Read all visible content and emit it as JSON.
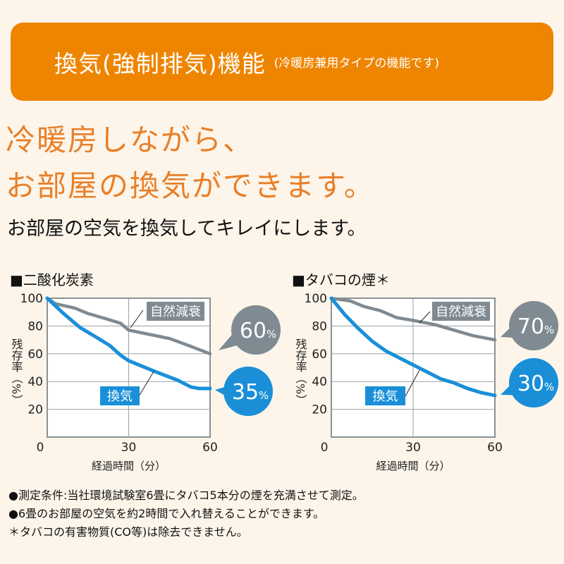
{
  "banner": {
    "title": "換気(強制排気)機能",
    "subtitle": "(冷暖房兼用タイプの機能です)"
  },
  "headline": {
    "line1": "冷暖房しながら、",
    "line2": "お部屋の換気ができます。"
  },
  "subheadline": "お部屋の空気を換気してキレイにします。",
  "colors": {
    "orange": "#ee8500",
    "headline": "#e8802a",
    "blue": "#1a8fd8",
    "gray": "#7f8a92",
    "background": "#fdf5ea"
  },
  "chart_data": [
    {
      "type": "line",
      "title": "■二酸化炭素",
      "xlabel": "経過時間（分）",
      "ylabel": "残存率（%）",
      "xlim": [
        0,
        60
      ],
      "ylim": [
        0,
        100
      ],
      "xticks": [
        "0",
        "30",
        "60"
      ],
      "yticks": [
        "100",
        "80",
        "60",
        "40",
        "20"
      ],
      "grid": true,
      "series": [
        {
          "name": "自然減衰",
          "color": "#7f8a92",
          "end_label": "60",
          "unit": "%",
          "x": [
            0,
            3,
            10,
            15,
            22,
            27,
            30,
            35,
            45,
            52,
            60
          ],
          "y": [
            100,
            96,
            93,
            89,
            85,
            82,
            77,
            75,
            71,
            66,
            60
          ]
        },
        {
          "name": "換気",
          "color": "#1a8fd8",
          "end_label": "35",
          "unit": "%",
          "x": [
            0,
            6,
            12,
            18,
            23,
            27,
            30,
            35,
            40,
            48,
            53,
            56,
            60
          ],
          "y": [
            100,
            89,
            79,
            72,
            66,
            59,
            55,
            51,
            47,
            41,
            36,
            35,
            35
          ]
        }
      ]
    },
    {
      "type": "line",
      "title": "■タバコの煙＊",
      "xlabel": "経過時間（分）",
      "ylabel": "残存率（%）",
      "xlim": [
        0,
        60
      ],
      "ylim": [
        0,
        100
      ],
      "xticks": [
        "0",
        "30",
        "60"
      ],
      "yticks": [
        "100",
        "80",
        "60",
        "40",
        "20"
      ],
      "grid": true,
      "series": [
        {
          "name": "自然減衰",
          "color": "#7f8a92",
          "end_label": "70",
          "unit": "%",
          "x": [
            0,
            7,
            12,
            18,
            24,
            30,
            38,
            45,
            52,
            60
          ],
          "y": [
            100,
            98,
            94,
            91,
            86,
            84,
            81,
            77,
            73,
            70
          ]
        },
        {
          "name": "換気",
          "color": "#1a8fd8",
          "end_label": "30",
          "unit": "%",
          "x": [
            0,
            5,
            10,
            15,
            20,
            25,
            30,
            35,
            40,
            45,
            50,
            55,
            60
          ],
          "y": [
            100,
            88,
            78,
            69,
            62,
            57,
            52,
            47,
            42,
            39,
            35,
            32,
            30
          ]
        }
      ]
    }
  ],
  "notes": [
    "●測定条件:当社環境試験室6畳にタバコ5本分の煙を充満させて測定。",
    "●6畳のお部屋の空気を約2時間で入れ替えることができます。",
    "＊タバコの有害物質(CO等)は除去できません。"
  ]
}
